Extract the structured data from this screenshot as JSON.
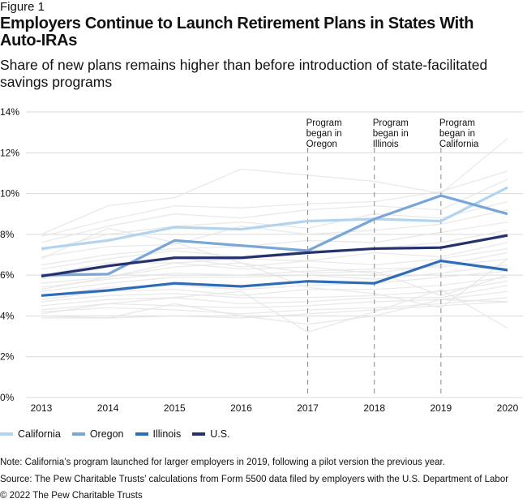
{
  "figure_label": "Figure 1",
  "title": "Employers Continue to Launch Retirement Plans in States With Auto-IRAs",
  "subtitle": "Share of new plans remains higher than before introduction of state-facilitated savings programs",
  "note": "Note: California’s program launched for larger employers in 2019, following a pilot version the previous year.",
  "source": "Source: The Pew Charitable Trusts’ calculations from Form 5500 data filed by employers with the U.S. Department of Labor",
  "copyright": "© 2022 The Pew Charitable Trusts",
  "chart_data": {
    "type": "line",
    "x": [
      2013,
      2014,
      2015,
      2016,
      2017,
      2018,
      2019,
      2020
    ],
    "ylim": [
      0,
      14
    ],
    "yticks": [
      0,
      2,
      4,
      6,
      8,
      10,
      12,
      14
    ],
    "ytick_labels": [
      "0%",
      "2%",
      "4%",
      "6%",
      "8%",
      "10%",
      "12%",
      "14%"
    ],
    "grid": true,
    "legend_position": "bottom",
    "series": [
      {
        "name": "California",
        "color": "#b3d4ef",
        "values": [
          7.3,
          7.7,
          8.35,
          8.25,
          8.65,
          8.75,
          8.65,
          10.3
        ]
      },
      {
        "name": "Oregon",
        "color": "#78a6d8",
        "values": [
          6.0,
          6.05,
          7.7,
          7.45,
          7.2,
          8.75,
          9.9,
          9.0
        ]
      },
      {
        "name": "Illinois",
        "color": "#2e6cb8",
        "values": [
          5.0,
          5.25,
          5.6,
          5.45,
          5.7,
          5.6,
          6.7,
          6.25
        ]
      },
      {
        "name": "U.S.",
        "color": "#25306e",
        "values": [
          5.95,
          6.45,
          6.85,
          6.85,
          7.1,
          7.3,
          7.35,
          7.95
        ]
      }
    ],
    "other_states_color": "#e4e4e4",
    "other_states": [
      [
        8.0,
        9.4,
        9.8,
        11.2,
        10.9,
        10.6,
        10.0,
        12.7
      ],
      [
        7.9,
        8.7,
        9.4,
        9.3,
        9.5,
        9.6,
        10.1,
        11.1
      ],
      [
        7.6,
        8.4,
        9.0,
        8.8,
        9.2,
        9.4,
        9.2,
        10.7
      ],
      [
        7.2,
        8.0,
        8.4,
        8.6,
        8.3,
        9.0,
        8.8,
        9.6
      ],
      [
        6.9,
        7.4,
        7.5,
        8.4,
        8.0,
        8.2,
        8.5,
        9.2
      ],
      [
        6.5,
        7.0,
        7.3,
        7.4,
        7.7,
        7.6,
        8.1,
        8.6
      ],
      [
        6.3,
        6.8,
        7.2,
        6.9,
        7.2,
        7.3,
        7.6,
        8.2
      ],
      [
        6.0,
        6.6,
        6.6,
        6.8,
        6.7,
        7.1,
        6.9,
        7.6
      ],
      [
        5.8,
        6.4,
        6.9,
        6.4,
        6.7,
        6.5,
        6.8,
        7.3
      ],
      [
        5.6,
        5.9,
        6.6,
        6.3,
        6.4,
        6.1,
        6.5,
        7.1
      ],
      [
        5.4,
        5.8,
        6.1,
        6.0,
        6.2,
        6.3,
        6.4,
        6.8
      ],
      [
        5.2,
        5.6,
        5.9,
        5.9,
        6.0,
        5.8,
        6.1,
        6.5
      ],
      [
        5.0,
        5.4,
        5.5,
        5.3,
        5.5,
        5.6,
        5.9,
        6.2
      ],
      [
        4.8,
        5.2,
        5.3,
        5.0,
        5.3,
        5.3,
        5.5,
        5.9
      ],
      [
        4.7,
        5.0,
        5.1,
        4.9,
        4.9,
        5.0,
        5.2,
        5.7
      ],
      [
        4.5,
        4.8,
        4.9,
        4.6,
        4.7,
        4.9,
        4.9,
        5.5
      ],
      [
        4.3,
        4.6,
        4.5,
        4.4,
        4.5,
        4.7,
        4.8,
        5.2
      ],
      [
        4.2,
        4.4,
        4.3,
        4.1,
        4.3,
        4.4,
        4.6,
        4.9
      ],
      [
        4.0,
        3.9,
        4.0,
        3.9,
        4.1,
        4.3,
        4.5,
        4.7
      ],
      [
        3.9,
        3.9,
        4.6,
        4.0,
        3.6,
        4.0,
        4.8,
        4.7
      ],
      [
        4.1,
        4.6,
        4.9,
        5.2,
        3.2,
        4.2,
        5.3,
        3.4
      ],
      [
        6.8,
        8.3,
        7.6,
        6.6,
        6.1,
        6.2,
        5.0,
        6.0
      ],
      [
        5.3,
        5.9,
        6.4,
        6.6,
        5.4,
        5.1,
        4.4,
        6.8
      ]
    ],
    "annotations": [
      {
        "x": 2017,
        "text": "Program began in Oregon"
      },
      {
        "x": 2018,
        "text": "Program began in Illinois"
      },
      {
        "x": 2019,
        "text": "Program began in California"
      }
    ]
  }
}
